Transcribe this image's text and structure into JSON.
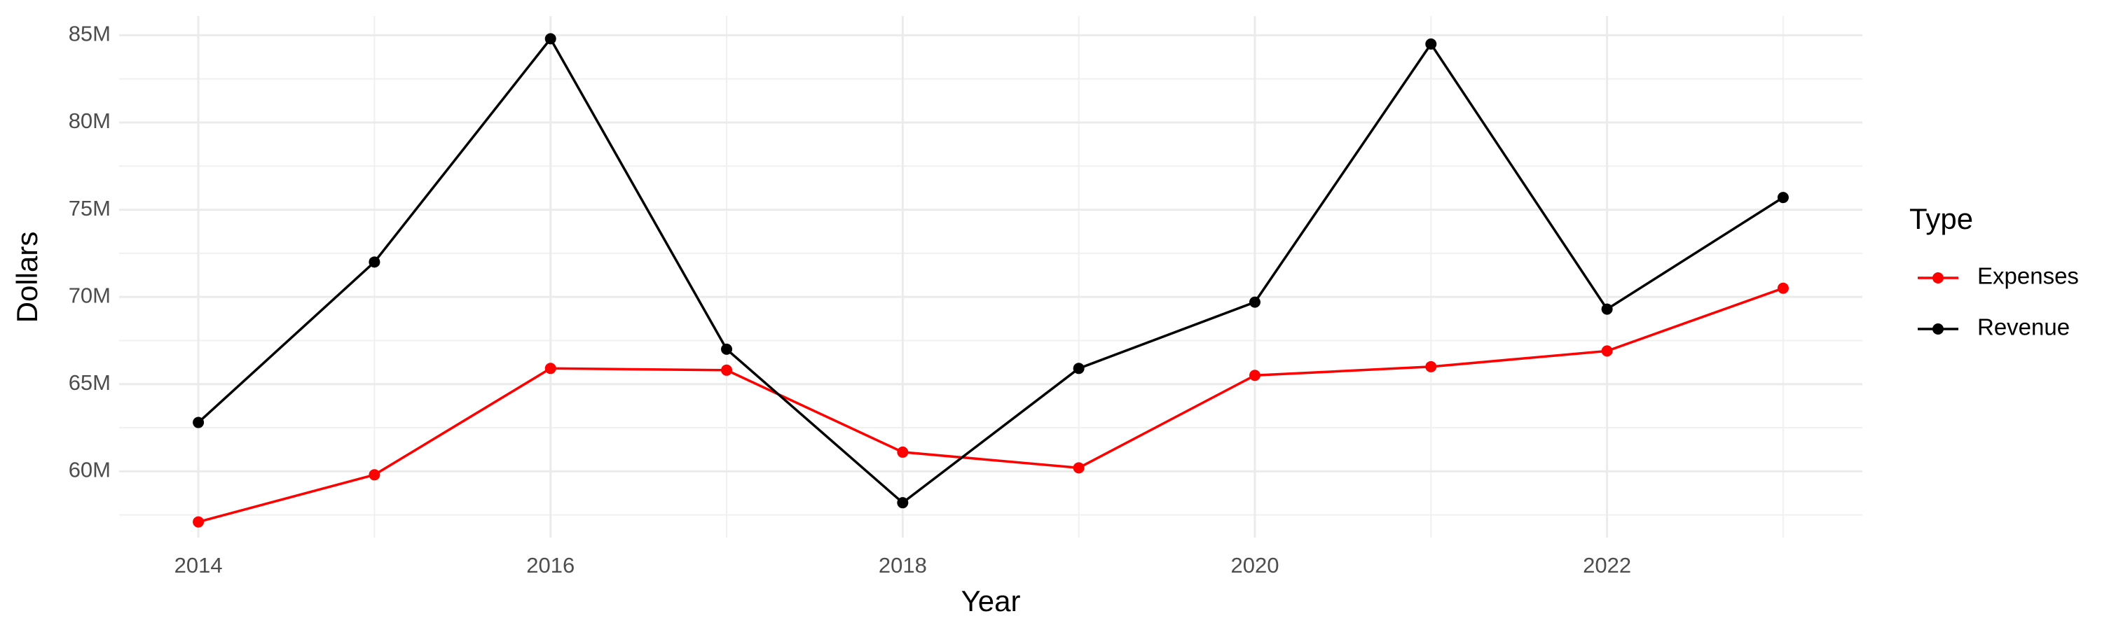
{
  "chart_data": {
    "type": "line",
    "x_label": "Year",
    "y_label": "Dollars",
    "x": [
      2014,
      2015,
      2016,
      2017,
      2018,
      2019,
      2020,
      2021,
      2022,
      2023
    ],
    "series": [
      {
        "name": "Expenses",
        "color": "#ff0000",
        "values": [
          57100000,
          59800000,
          65900000,
          65800000,
          61100000,
          60200000,
          65500000,
          66000000,
          66900000,
          70500000
        ]
      },
      {
        "name": "Revenue",
        "color": "#000000",
        "values": [
          62800000,
          72000000,
          84800000,
          67000000,
          58200000,
          65900000,
          69700000,
          84500000,
          69300000,
          75700000
        ]
      }
    ],
    "legend_title": "Type",
    "legend": "right",
    "grid": true,
    "xlim": [
      2013.55,
      2023.45
    ],
    "xticks": [
      2014,
      2016,
      2018,
      2020,
      2022
    ],
    "ylim": [
      56200000,
      86100000
    ],
    "yticks": [
      {
        "value": 60000000,
        "label": "60M"
      },
      {
        "value": 65000000,
        "label": "65M"
      },
      {
        "value": 70000000,
        "label": "70M"
      },
      {
        "value": 75000000,
        "label": "75M"
      },
      {
        "value": 80000000,
        "label": "80M"
      },
      {
        "value": 85000000,
        "label": "85M"
      }
    ]
  }
}
